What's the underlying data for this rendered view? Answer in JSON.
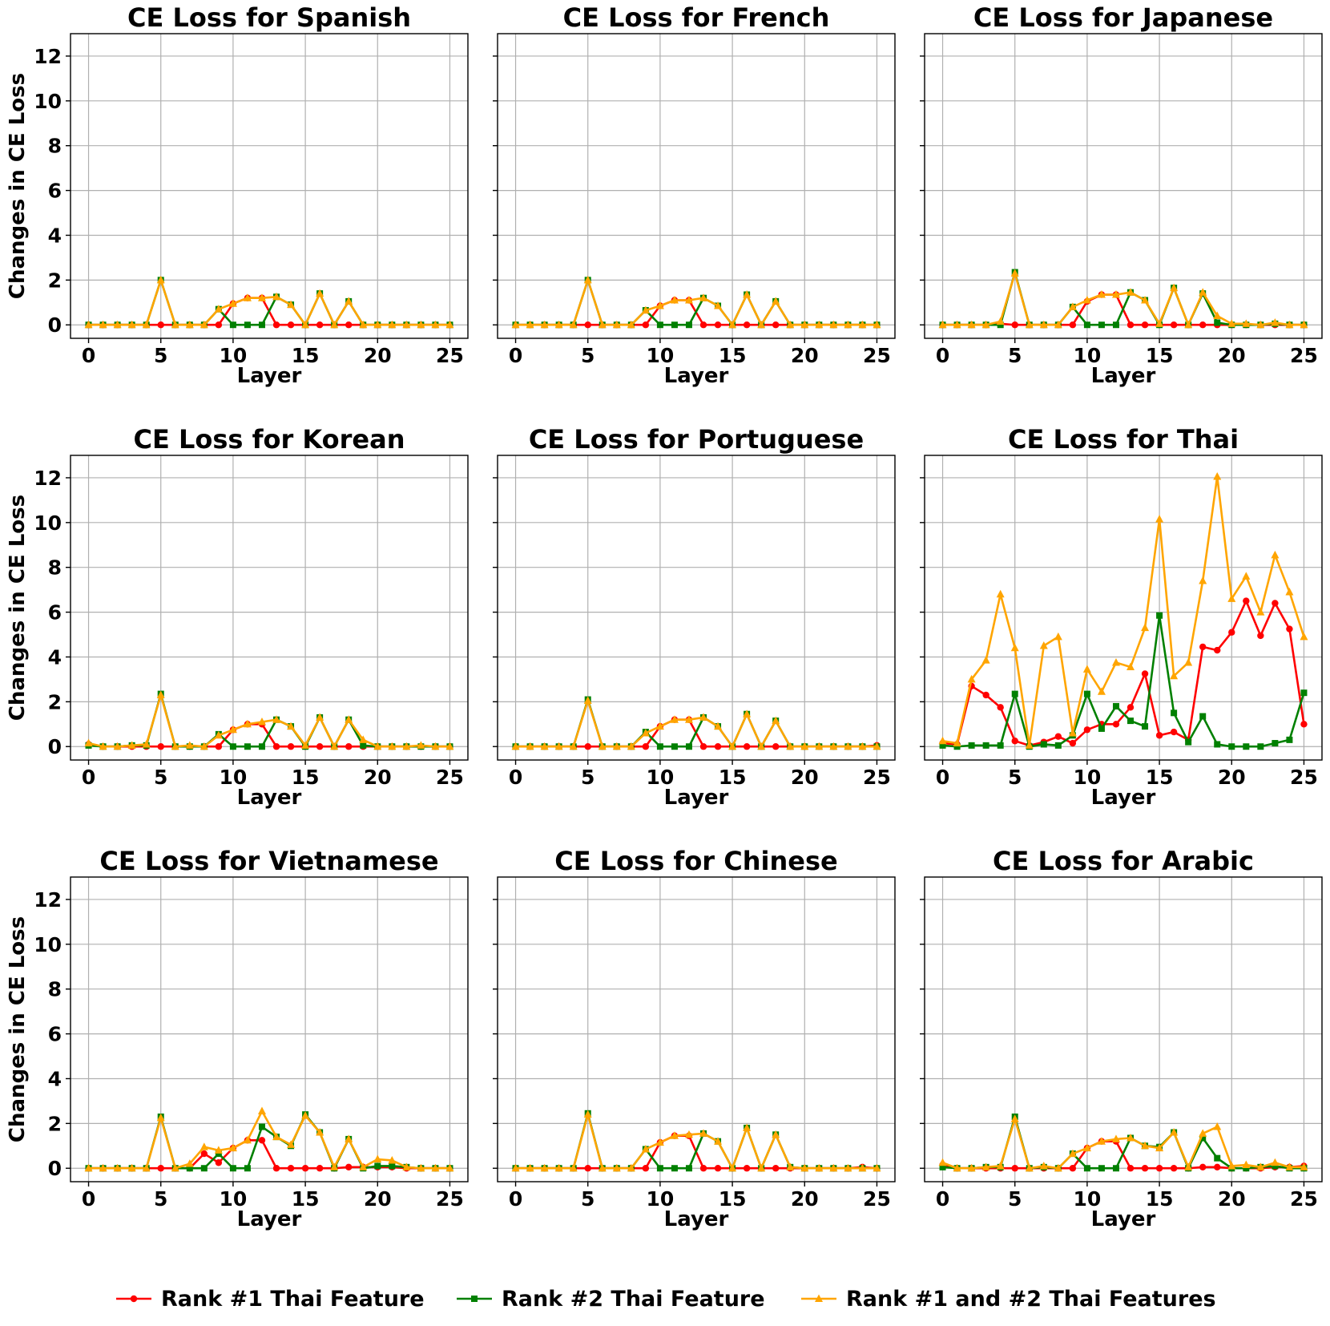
{
  "chart_data": {
    "type": "line",
    "layout": "3x3 grid of line charts",
    "colors": {
      "rank1": "#ff0000",
      "rank2": "#008000",
      "both": "#ffa500"
    },
    "markers": {
      "rank1": "circle",
      "rank2": "square",
      "both": "triangle"
    },
    "xlabel": "Layer",
    "ylabel": "Changes in CE Loss",
    "xlim": [
      -1.25,
      26.25
    ],
    "ylim": [
      -0.6,
      13.0
    ],
    "xticks": [
      "0",
      "5",
      "10",
      "15",
      "20",
      "25"
    ],
    "yticks": [
      "0",
      "2",
      "4",
      "6",
      "8",
      "10",
      "12"
    ],
    "grid": true,
    "legend_position": "bottom",
    "legend": [
      {
        "key": "rank1",
        "label": "Rank #1 Thai Feature"
      },
      {
        "key": "rank2",
        "label": "Rank #2  Thai Feature"
      },
      {
        "key": "both",
        "label": "Rank #1 and #2  Thai Features"
      }
    ],
    "x": [
      0,
      1,
      2,
      3,
      4,
      5,
      6,
      7,
      8,
      9,
      10,
      11,
      12,
      13,
      14,
      15,
      16,
      17,
      18,
      19,
      20,
      21,
      22,
      23,
      24,
      25
    ],
    "panels": [
      {
        "title": "CE Loss for Spanish",
        "series": {
          "rank1": [
            0,
            0,
            0,
            0,
            0,
            0,
            0,
            0,
            0,
            0,
            0.95,
            1.2,
            1.2,
            0,
            0,
            0,
            0,
            0,
            0,
            0,
            0,
            0,
            0,
            0,
            0,
            0
          ],
          "rank2": [
            0,
            0,
            0,
            0,
            0,
            2.0,
            0,
            0,
            0,
            0.7,
            0,
            0,
            0,
            1.25,
            0.9,
            0,
            1.4,
            0,
            1.05,
            0,
            0,
            0,
            0,
            0,
            0,
            0
          ],
          "both": [
            0,
            0,
            0,
            0,
            0,
            2.0,
            0,
            0,
            0,
            0.7,
            0.95,
            1.2,
            1.2,
            1.25,
            0.9,
            0,
            1.4,
            0,
            1.05,
            0,
            0,
            0,
            0,
            0,
            0,
            0
          ]
        }
      },
      {
        "title": "CE Loss for French",
        "series": {
          "rank1": [
            0,
            0,
            0,
            0,
            0,
            0,
            0,
            0,
            0,
            0,
            0.85,
            1.1,
            1.1,
            0,
            0,
            0,
            0,
            0,
            0,
            0,
            0,
            0,
            0,
            0,
            0,
            0
          ],
          "rank2": [
            0,
            0,
            0,
            0,
            0,
            2.0,
            0,
            0,
            0,
            0.65,
            0,
            0,
            0,
            1.2,
            0.85,
            0,
            1.35,
            0,
            1.05,
            0,
            0,
            0,
            0,
            0,
            0,
            0
          ],
          "both": [
            0,
            0,
            0,
            0,
            0,
            2.0,
            0,
            0,
            0,
            0.65,
            0.85,
            1.1,
            1.1,
            1.2,
            0.85,
            0,
            1.35,
            0,
            1.05,
            0,
            0,
            0,
            0,
            0,
            0,
            0
          ]
        }
      },
      {
        "title": "CE Loss for Japanese",
        "series": {
          "rank1": [
            0,
            0,
            0,
            0,
            0.05,
            0,
            0,
            0,
            0,
            0,
            1.05,
            1.35,
            1.35,
            0,
            0,
            0,
            0,
            0,
            0,
            0,
            0,
            0,
            0,
            0,
            0,
            0
          ],
          "rank2": [
            0,
            0,
            0,
            0,
            0,
            2.35,
            0,
            0,
            0,
            0.8,
            0,
            0,
            0,
            1.45,
            1.1,
            0,
            1.65,
            0,
            1.4,
            0.1,
            0,
            0,
            0,
            0.05,
            0,
            0
          ],
          "both": [
            0,
            0,
            0,
            0,
            0.15,
            2.3,
            0,
            0,
            0,
            0.8,
            1.1,
            1.35,
            1.35,
            1.45,
            1.1,
            0.05,
            1.65,
            0,
            1.45,
            0.4,
            0.05,
            0.05,
            0,
            0.1,
            0,
            0
          ]
        }
      },
      {
        "title": "CE Loss for Korean",
        "series": {
          "rank1": [
            0.1,
            0,
            0,
            0,
            0,
            0,
            0,
            0,
            0,
            0,
            0.75,
            1.0,
            1.0,
            0,
            0,
            0,
            0,
            0,
            0,
            0,
            0,
            0,
            0,
            0,
            0,
            0
          ],
          "rank2": [
            0.05,
            0,
            0,
            0.05,
            0.05,
            2.35,
            0,
            0,
            0,
            0.55,
            0,
            0,
            0,
            1.2,
            0.9,
            0,
            1.3,
            0,
            1.2,
            0.05,
            0,
            0,
            0,
            0,
            0,
            0
          ],
          "both": [
            0.15,
            0,
            0,
            0.05,
            0.1,
            2.3,
            0,
            0.05,
            0,
            0.5,
            0.75,
            1.0,
            1.1,
            1.2,
            0.9,
            0.05,
            1.3,
            0,
            1.2,
            0.3,
            0,
            0,
            0,
            0.05,
            0,
            0
          ]
        }
      },
      {
        "title": "CE Loss for Portuguese",
        "series": {
          "rank1": [
            0,
            0,
            0,
            0,
            0,
            0,
            0,
            0,
            0,
            0,
            0.9,
            1.2,
            1.2,
            0,
            0,
            0,
            0,
            0,
            0,
            0,
            0,
            0,
            0,
            0,
            0,
            0.05
          ],
          "rank2": [
            0,
            0,
            0,
            0,
            0,
            2.1,
            0,
            0,
            0,
            0.65,
            0,
            0,
            0,
            1.3,
            0.9,
            0,
            1.45,
            0,
            1.15,
            0,
            0,
            0,
            0,
            0,
            0,
            0
          ],
          "both": [
            0,
            0,
            0,
            0,
            0,
            2.05,
            0,
            0,
            0,
            0.6,
            0.9,
            1.2,
            1.2,
            1.3,
            0.9,
            0,
            1.45,
            0,
            1.15,
            0,
            0,
            0,
            0,
            0,
            0,
            0
          ]
        }
      },
      {
        "title": "CE Loss for Thai",
        "series": {
          "rank1": [
            0.15,
            0.1,
            2.7,
            2.3,
            1.75,
            0.25,
            0.05,
            0.2,
            0.45,
            0.15,
            0.75,
            1.0,
            1.0,
            1.75,
            3.25,
            0.5,
            0.65,
            0.3,
            4.45,
            4.3,
            5.1,
            6.5,
            4.95,
            6.4,
            5.25,
            1.0
          ],
          "rank2": [
            0.05,
            0,
            0.05,
            0.05,
            0.05,
            2.35,
            0,
            0.1,
            0.05,
            0.5,
            2.35,
            0.8,
            1.8,
            1.15,
            0.9,
            5.85,
            1.5,
            0.2,
            1.35,
            0.1,
            0,
            0,
            0,
            0.15,
            0.3,
            2.4
          ],
          "both": [
            0.25,
            0.15,
            3.0,
            3.85,
            6.8,
            4.4,
            0.05,
            4.5,
            4.9,
            0.6,
            3.45,
            2.45,
            3.75,
            3.55,
            5.3,
            10.15,
            3.15,
            3.75,
            7.4,
            12.05,
            6.6,
            7.6,
            6.0,
            8.55,
            6.9,
            4.9
          ]
        }
      },
      {
        "title": "CE Loss for Vietnamese",
        "series": {
          "rank1": [
            0,
            0,
            0,
            0,
            0,
            0,
            0,
            0,
            0.65,
            0.25,
            0.9,
            1.25,
            1.25,
            0,
            0,
            0,
            0,
            0,
            0.05,
            0.05,
            0.05,
            0.05,
            0,
            0,
            0,
            0
          ],
          "rank2": [
            0,
            0,
            0,
            0,
            0,
            2.3,
            0,
            0,
            0,
            0.65,
            0,
            0,
            1.85,
            1.4,
            1.0,
            2.4,
            1.6,
            0,
            1.3,
            0,
            0.1,
            0.1,
            0.05,
            0,
            0,
            0
          ],
          "both": [
            0,
            0,
            0,
            0,
            0,
            2.25,
            0,
            0.2,
            0.95,
            0.8,
            0.9,
            1.25,
            2.55,
            1.4,
            1.05,
            2.35,
            1.6,
            0.05,
            1.3,
            0.05,
            0.4,
            0.35,
            0.05,
            0,
            0,
            0
          ]
        }
      },
      {
        "title": "CE Loss for Chinese",
        "series": {
          "rank1": [
            0,
            0,
            0,
            0,
            0,
            0,
            0,
            0,
            0,
            0,
            1.15,
            1.45,
            1.45,
            0,
            0,
            0,
            0,
            0,
            0,
            0,
            0,
            0,
            0,
            0,
            0.05,
            0
          ],
          "rank2": [
            0,
            0,
            0,
            0,
            0,
            2.45,
            0,
            0,
            0,
            0.85,
            0,
            0,
            0,
            1.55,
            1.2,
            0,
            1.8,
            0,
            1.5,
            0.05,
            0,
            0,
            0,
            0,
            0,
            0
          ],
          "both": [
            0,
            0,
            0,
            0,
            0,
            2.4,
            0,
            0,
            0,
            0.85,
            1.15,
            1.45,
            1.5,
            1.55,
            1.2,
            0,
            1.8,
            0,
            1.5,
            0.05,
            0,
            0,
            0,
            0,
            0,
            0
          ]
        }
      },
      {
        "title": "CE Loss for Arabic",
        "series": {
          "rank1": [
            0.15,
            0,
            0,
            0,
            0,
            0,
            0,
            0,
            0,
            0,
            0.9,
            1.2,
            1.2,
            0,
            0,
            0,
            0,
            0,
            0.05,
            0.05,
            0,
            0,
            0,
            0.05,
            0.05,
            0.1
          ],
          "rank2": [
            0.05,
            0,
            0,
            0.05,
            0.05,
            2.3,
            0,
            0.05,
            0,
            0.65,
            0,
            0,
            0,
            1.35,
            1.0,
            0.95,
            1.6,
            0,
            1.35,
            0.45,
            0,
            0,
            0.05,
            0.1,
            0,
            0
          ],
          "both": [
            0.25,
            0,
            0,
            0.05,
            0.1,
            2.2,
            0,
            0.1,
            0,
            0.65,
            0.9,
            1.2,
            1.3,
            1.35,
            1.0,
            0.9,
            1.6,
            0.05,
            1.55,
            1.85,
            0.1,
            0.15,
            0.05,
            0.25,
            0.05,
            0.05
          ]
        }
      }
    ]
  }
}
